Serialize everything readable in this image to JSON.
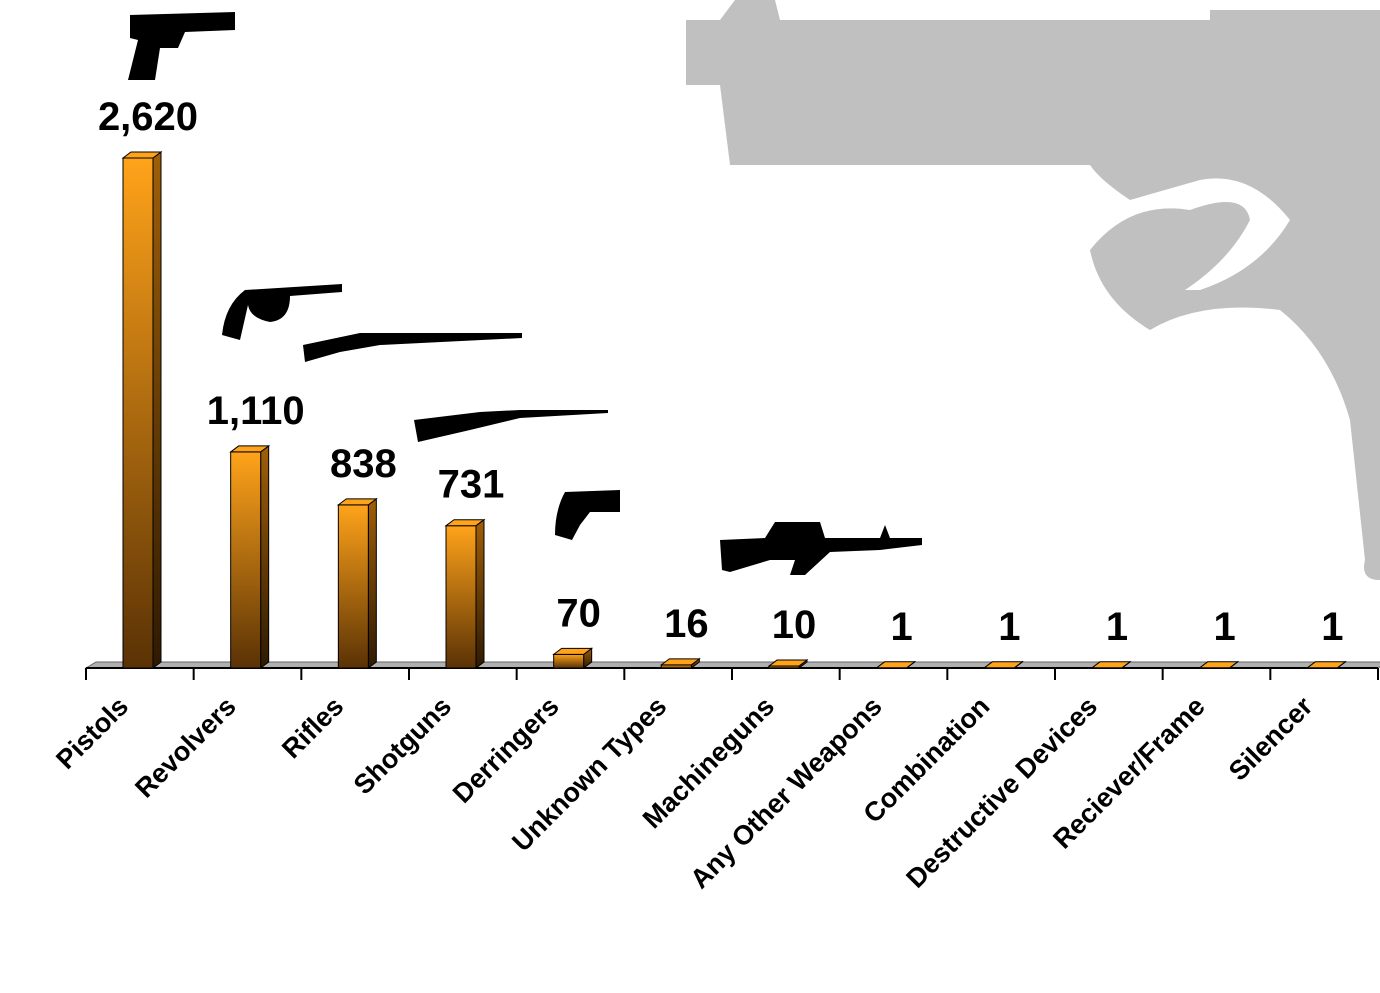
{
  "chart_data": {
    "type": "bar",
    "categories": [
      "Pistols",
      "Revolvers",
      "Rifles",
      "Shotguns",
      "Derringers",
      "Unknown Types",
      "Machineguns",
      "Any Other Weapons",
      "Combination",
      "Destructive Devices",
      "Reciever/Frame",
      "Silencer"
    ],
    "values": [
      2620,
      1110,
      838,
      731,
      70,
      16,
      10,
      1,
      1,
      1,
      1,
      1
    ],
    "value_labels": [
      "2,620",
      "1,110",
      "838",
      "731",
      "70",
      "16",
      "10",
      "1",
      "1",
      "1",
      "1",
      "1"
    ],
    "color": "#ffa31a"
  }
}
